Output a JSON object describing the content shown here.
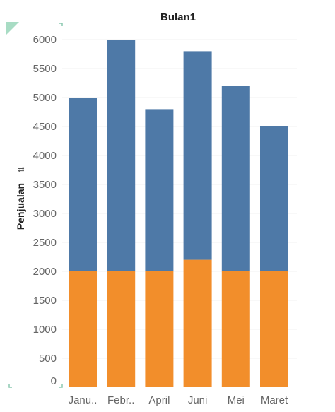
{
  "chart_data": {
    "type": "bar",
    "stacked": true,
    "title": "Bulan1",
    "ylabel": "Penjualan",
    "xlabel": "",
    "categories": [
      "Janu..",
      "Febr..",
      "April",
      "Juni",
      "Mei",
      "Maret"
    ],
    "series": [
      {
        "values": [
          2000,
          2000,
          2000,
          2200,
          2000,
          2000
        ],
        "color": "#f28e2b"
      },
      {
        "values": [
          3000,
          4000,
          2800,
          3600,
          3200,
          2500
        ],
        "color": "#4e79a7"
      }
    ],
    "ylim": [
      0,
      6000
    ],
    "yticks": [
      0,
      500,
      1000,
      1500,
      2000,
      2500,
      3000,
      3500,
      4000,
      4500,
      5000,
      5500,
      6000
    ],
    "grid": true
  },
  "ui": {
    "sort_icon": "sort-icon",
    "corner_marker_color": "#a8dcc4",
    "corner_bracket_color": "#8cc9b0"
  }
}
